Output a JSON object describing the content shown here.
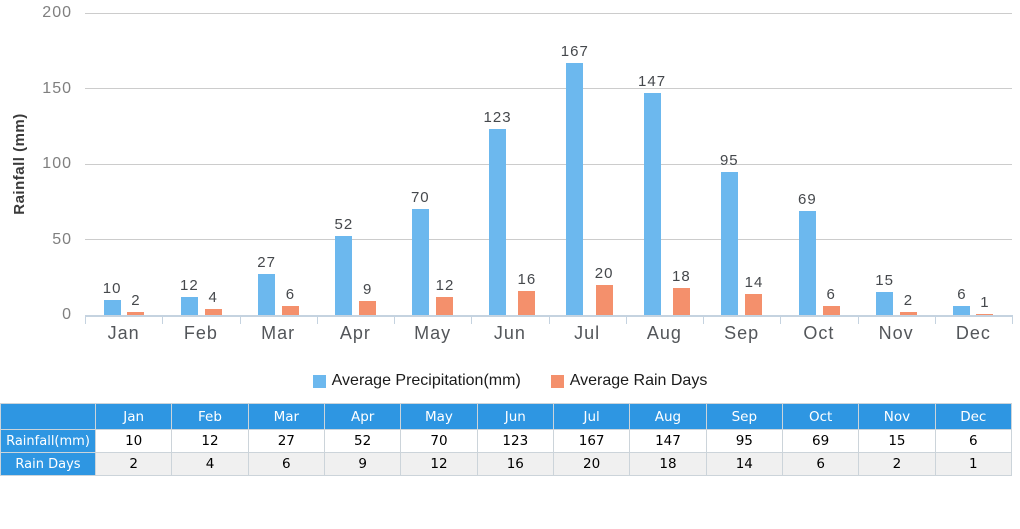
{
  "chart_data": {
    "type": "bar",
    "categories": [
      "Jan",
      "Feb",
      "Mar",
      "Apr",
      "May",
      "Jun",
      "Jul",
      "Aug",
      "Sep",
      "Oct",
      "Nov",
      "Dec"
    ],
    "series": [
      {
        "name": "Average Precipitation(mm)",
        "color": "#6CB8EE",
        "values": [
          10,
          12,
          27,
          52,
          70,
          123,
          167,
          147,
          95,
          69,
          15,
          6
        ]
      },
      {
        "name": "Average Rain Days",
        "color": "#F4906C",
        "values": [
          2,
          4,
          6,
          9,
          12,
          16,
          20,
          18,
          14,
          6,
          2,
          1
        ]
      }
    ],
    "title": "",
    "xlabel": "",
    "ylabel": "Rainfall (mm)",
    "ylim": [
      0,
      200
    ],
    "yticks": [
      0,
      50,
      100,
      150,
      200
    ],
    "grid": true,
    "bar_value_labels": true,
    "legend_position": "bottom"
  },
  "table": {
    "corner_label": "",
    "columns": [
      "Jan",
      "Feb",
      "Mar",
      "Apr",
      "May",
      "Jun",
      "Jul",
      "Aug",
      "Sep",
      "Oct",
      "Nov",
      "Dec"
    ],
    "rows": [
      {
        "label": "Rainfall(mm)",
        "values": [
          "10",
          "12",
          "27",
          "52",
          "70",
          "123",
          "167",
          "147",
          "95",
          "69",
          "15",
          "6"
        ]
      },
      {
        "label": "Rain Days",
        "values": [
          "2",
          "4",
          "6",
          "9",
          "12",
          "16",
          "20",
          "18",
          "14",
          "6",
          "2",
          "1"
        ]
      }
    ],
    "header_bg": "#2E96E2",
    "alt_row_bg": "#F0F0F0"
  }
}
